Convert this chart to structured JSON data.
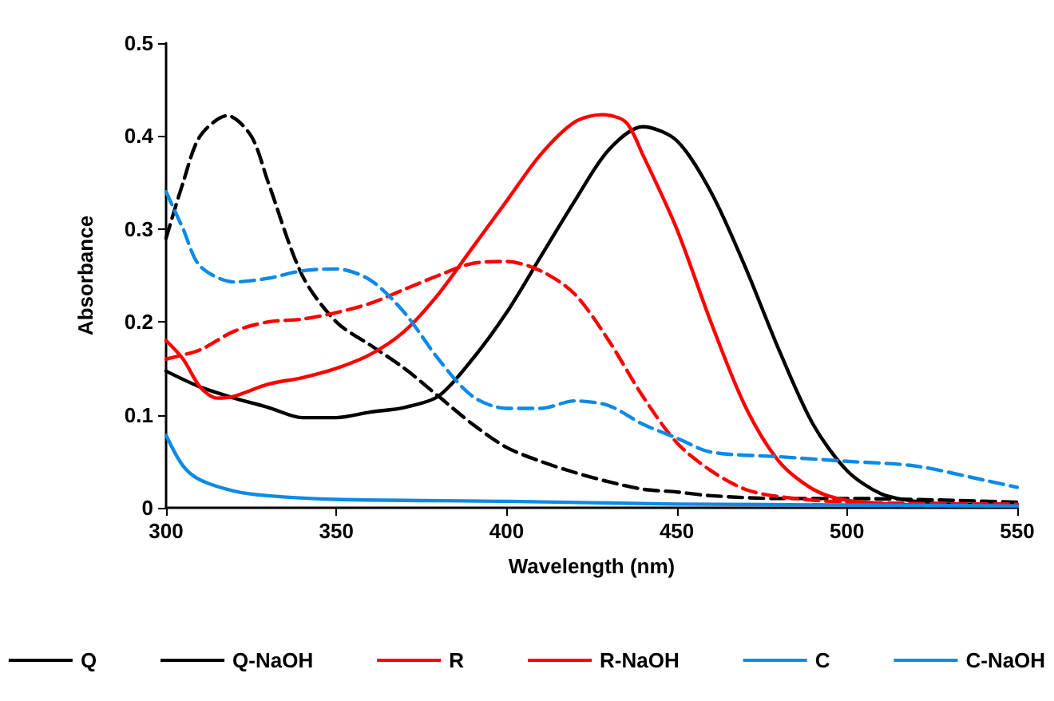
{
  "chart_data": {
    "type": "line",
    "xlabel": "Wavelength (nm)",
    "ylabel": "Absorbance",
    "xlim": [
      300,
      550
    ],
    "xticks": [
      300,
      350,
      400,
      450,
      500,
      550
    ],
    "ylim": [
      0,
      0.5
    ],
    "yticks": [
      0,
      0.1,
      0.2,
      0.3,
      0.4,
      0.5
    ],
    "grid": false,
    "legend": "bottom",
    "marker": "none",
    "series": [
      {
        "name": "Q",
        "color": "#000000",
        "line_style": "solid",
        "x": [
          300,
          310,
          320,
          330,
          340,
          350,
          360,
          370,
          380,
          390,
          400,
          410,
          420,
          430,
          440,
          450,
          460,
          470,
          480,
          490,
          500,
          510,
          520,
          530,
          550
        ],
        "values": [
          0.147,
          0.13,
          0.118,
          0.108,
          0.097,
          0.097,
          0.103,
          0.108,
          0.12,
          0.16,
          0.21,
          0.27,
          0.33,
          0.385,
          0.41,
          0.395,
          0.34,
          0.26,
          0.17,
          0.09,
          0.04,
          0.015,
          0.007,
          0.004,
          0.003
        ]
      },
      {
        "name": "Q-NaOH",
        "color": "#000000",
        "line_style": "dashed",
        "x": [
          300,
          305,
          310,
          318,
          325,
          330,
          340,
          350,
          360,
          370,
          380,
          390,
          400,
          410,
          420,
          430,
          440,
          450,
          460,
          480,
          500,
          550
        ],
        "values": [
          0.29,
          0.35,
          0.4,
          0.422,
          0.4,
          0.35,
          0.25,
          0.2,
          0.175,
          0.15,
          0.12,
          0.09,
          0.065,
          0.05,
          0.038,
          0.028,
          0.02,
          0.017,
          0.013,
          0.01,
          0.01,
          0.006
        ]
      },
      {
        "name": "R",
        "color": "#ff0000",
        "line_style": "solid",
        "x": [
          300,
          305,
          310,
          315,
          320,
          330,
          340,
          350,
          360,
          370,
          380,
          390,
          400,
          410,
          420,
          428,
          435,
          440,
          450,
          460,
          470,
          480,
          490,
          500,
          520,
          550
        ],
        "values": [
          0.18,
          0.16,
          0.13,
          0.118,
          0.12,
          0.133,
          0.14,
          0.15,
          0.165,
          0.19,
          0.23,
          0.28,
          0.33,
          0.38,
          0.415,
          0.423,
          0.415,
          0.38,
          0.3,
          0.2,
          0.11,
          0.05,
          0.02,
          0.008,
          0.003,
          0.002
        ]
      },
      {
        "name": "R-NaOH",
        "color": "#ff0000",
        "line_style": "dashed",
        "x": [
          300,
          310,
          320,
          330,
          340,
          350,
          360,
          370,
          380,
          390,
          400,
          410,
          420,
          430,
          440,
          450,
          460,
          470,
          480,
          500,
          550
        ],
        "values": [
          0.16,
          0.17,
          0.19,
          0.2,
          0.203,
          0.21,
          0.22,
          0.235,
          0.25,
          0.263,
          0.265,
          0.255,
          0.23,
          0.18,
          0.12,
          0.07,
          0.04,
          0.02,
          0.012,
          0.006,
          0.004
        ]
      },
      {
        "name": "C",
        "color": "#0d8ae6",
        "line_style": "solid",
        "x": [
          300,
          305,
          310,
          320,
          330,
          350,
          400,
          450,
          500,
          550
        ],
        "values": [
          0.078,
          0.045,
          0.03,
          0.018,
          0.013,
          0.009,
          0.007,
          0.004,
          0.003,
          0.002
        ]
      },
      {
        "name": "C-NaOH",
        "color": "#0d8ae6",
        "line_style": "dashed",
        "x": [
          300,
          305,
          310,
          320,
          330,
          340,
          350,
          360,
          370,
          380,
          390,
          400,
          410,
          420,
          430,
          440,
          450,
          460,
          480,
          500,
          520,
          540,
          550
        ],
        "values": [
          0.34,
          0.3,
          0.26,
          0.243,
          0.247,
          0.255,
          0.257,
          0.245,
          0.21,
          0.16,
          0.12,
          0.107,
          0.107,
          0.115,
          0.11,
          0.09,
          0.075,
          0.06,
          0.055,
          0.05,
          0.045,
          0.03,
          0.022
        ]
      }
    ]
  }
}
